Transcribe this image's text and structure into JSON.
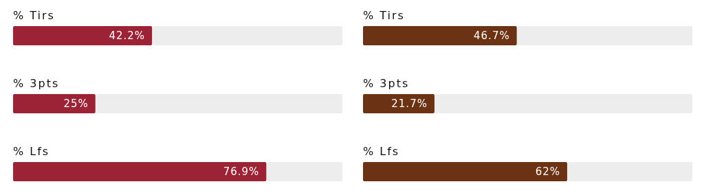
{
  "chart_data": [
    {
      "type": "bar",
      "orientation": "horizontal",
      "categories": [
        "% Tirs",
        "% 3pts",
        "% Lfs"
      ],
      "values": [
        42.2,
        25,
        76.9
      ],
      "value_labels": [
        "42.2%",
        "25%",
        "76.9%"
      ],
      "color": "#9b2335",
      "xlim": [
        0,
        100
      ],
      "tick_labels": "y"
    },
    {
      "type": "bar",
      "orientation": "horizontal",
      "categories": [
        "% Tirs",
        "% 3pts",
        "% Lfs"
      ],
      "values": [
        46.7,
        21.7,
        62
      ],
      "value_labels": [
        "46.7%",
        "21.7%",
        "62%"
      ],
      "color": "#6b3213",
      "xlim": [
        0,
        100
      ],
      "tick_labels": "y"
    }
  ]
}
